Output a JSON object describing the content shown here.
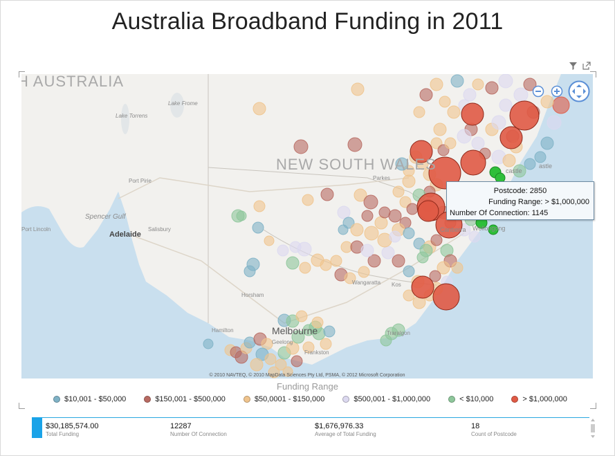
{
  "title": "Australia Broadband Funding in 2011",
  "toolbar": {
    "icons": [
      "filter-icon",
      "popout-icon"
    ]
  },
  "map": {
    "labels": {
      "south_australia": "H AUSTRALIA",
      "nsw": "NEW SOUTH WALES",
      "lake_frome": "Lake Frome",
      "lake_torrens": "Lake Torrens",
      "port_pirie": "Port Pirie",
      "spencer_gulf": "Spencer Gulf",
      "port_lincoln": "Port Lincoln",
      "adelaide": "Adelaide",
      "salisbury": "Salisbury",
      "horsham": "Horsham",
      "hamilton": "Hamilton",
      "melbourne": "Melbourne",
      "geelong": "Geelong",
      "frankston": "Frankston",
      "parkes": "Parkes",
      "wollongong": "Wollongong",
      "canberra": "Canberra",
      "wangaratta": "Wangaratta",
      "kosciuszko": "Kos",
      "traralgon": "Traralgon",
      "castle": "castle",
      "astle": "astle",
      "nberra": "nberra"
    },
    "copyright": "© 2010 NAVTEQ, © 2010 MapData Sciences Pty Ltd, PSMA, © 2012 Microsoft Corporation",
    "controls": [
      "zoom-out-icon",
      "zoom-in-icon",
      "pan-icon"
    ]
  },
  "tooltip": {
    "postcode": "Postcode: 2850",
    "funding_range": "Funding Range: > $1,000,000",
    "connections": "Number Of Connection: 1145"
  },
  "legend": {
    "title": "Funding Range",
    "items": [
      {
        "label": "$10,001 - $50,000",
        "color": "#7fb2c6"
      },
      {
        "label": "$150,001 - $500,000",
        "color": "#b86a62"
      },
      {
        "label": "$50,0001 - $150,000",
        "color": "#f0c48d"
      },
      {
        "label": "$500,001 - $1,000,000",
        "color": "#dcd9f0"
      },
      {
        "label": "< $10,000",
        "color": "#8ec79b"
      },
      {
        "label": "> $1,000,000",
        "color": "#e05a45"
      }
    ]
  },
  "cards": [
    {
      "value": "$30,185,574.00",
      "label": "Total Funding"
    },
    {
      "value": "12287",
      "label": "Number Of Connection"
    },
    {
      "value": "$1,676,976.33",
      "label": "Average of Total Funding"
    },
    {
      "value": "18",
      "label": "Count of Postcode"
    }
  ]
}
